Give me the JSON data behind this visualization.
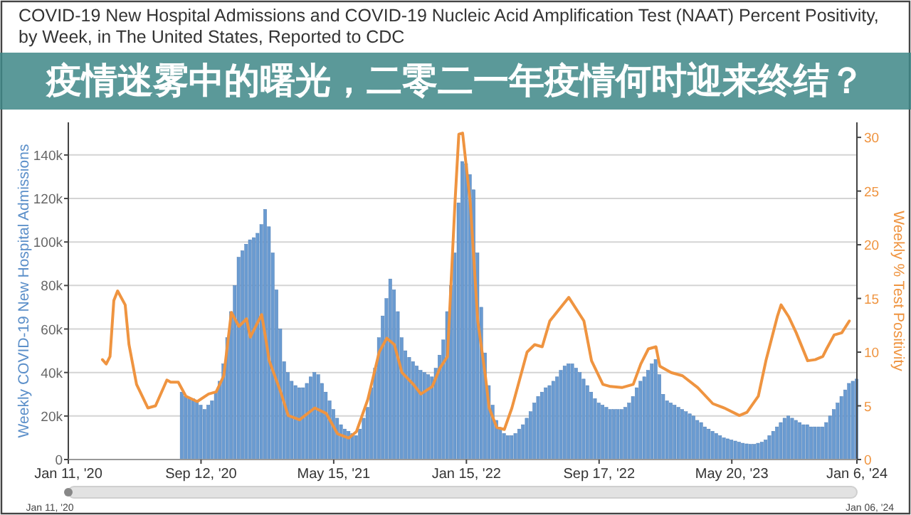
{
  "chart_data": {
    "type": "bar",
    "title": "COVID-19 New Hospital Admissions and COVID-19 Nucleic Acid Amplification Test (NAAT) Percent Positivity, by Week, in The United States, Reported to CDC",
    "ylabel": "Weekly COVID-19 New Hospital Admissions",
    "y2label": "Weekly % Test Positivity",
    "annotations": [
      "疫情迷雾中的曙光，二零二一年疫情何时迎来终结？",
      "Jan 11, '20",
      "Jan 06, '24"
    ],
    "xlim": [
      "2020-01-11",
      "2024-01-06"
    ],
    "xticks": [
      {
        "value": "2020-01-11",
        "label": "Jan 11, '20"
      },
      {
        "value": "2020-09-12",
        "label": "Sep 12, '20"
      },
      {
        "value": "2021-05-15",
        "label": "May 15, '21"
      },
      {
        "value": "2022-01-15",
        "label": "Jan 15, '22"
      },
      {
        "value": "2022-09-17",
        "label": "Sep 17, '22"
      },
      {
        "value": "2023-05-20",
        "label": "May 20, '23"
      },
      {
        "value": "2024-01-06",
        "label": "Jan 6, '24"
      }
    ],
    "ylim": [
      0,
      155000
    ],
    "yticks": [
      {
        "value": 0,
        "label": "0"
      },
      {
        "value": 20000,
        "label": "20k"
      },
      {
        "value": 40000,
        "label": "40k"
      },
      {
        "value": 60000,
        "label": "60k"
      },
      {
        "value": 80000,
        "label": "80k"
      },
      {
        "value": 100000,
        "label": "100k"
      },
      {
        "value": 120000,
        "label": "120k"
      },
      {
        "value": 140000,
        "label": "140k"
      }
    ],
    "y2lim": [
      0,
      31.4
    ],
    "y2ticks": [
      0,
      5,
      10,
      15,
      20,
      25,
      30
    ],
    "grid": "y",
    "series": [
      {
        "color": "#6a9bd1",
        "x": [
          "2020-08-08",
          "2020-08-15",
          "2020-08-22",
          "2020-08-29",
          "2020-09-05",
          "2020-09-12",
          "2020-09-19",
          "2020-09-26",
          "2020-10-03",
          "2020-10-10",
          "2020-10-17",
          "2020-10-24",
          "2020-10-31",
          "2020-11-07",
          "2020-11-14",
          "2020-11-21",
          "2020-11-28",
          "2020-12-05",
          "2020-12-12",
          "2020-12-19",
          "2020-12-26",
          "2021-01-02",
          "2021-01-09",
          "2021-01-16",
          "2021-01-23",
          "2021-01-30",
          "2021-02-06",
          "2021-02-13",
          "2021-02-20",
          "2021-02-27",
          "2021-03-06",
          "2021-03-13",
          "2021-03-20",
          "2021-03-27",
          "2021-04-03",
          "2021-04-10",
          "2021-04-17",
          "2021-04-24",
          "2021-05-01",
          "2021-05-08",
          "2021-05-15",
          "2021-05-22",
          "2021-05-29",
          "2021-06-05",
          "2021-06-12",
          "2021-06-19",
          "2021-06-26",
          "2021-07-03",
          "2021-07-10",
          "2021-07-17",
          "2021-07-24",
          "2021-07-31",
          "2021-08-07",
          "2021-08-14",
          "2021-08-21",
          "2021-08-28",
          "2021-09-04",
          "2021-09-11",
          "2021-09-18",
          "2021-09-25",
          "2021-10-02",
          "2021-10-09",
          "2021-10-16",
          "2021-10-23",
          "2021-10-30",
          "2021-11-06",
          "2021-11-13",
          "2021-11-20",
          "2021-11-27",
          "2021-12-04",
          "2021-12-11",
          "2021-12-18",
          "2021-12-25",
          "2022-01-01",
          "2022-01-08",
          "2022-01-15",
          "2022-01-22",
          "2022-01-29",
          "2022-02-05",
          "2022-02-12",
          "2022-02-19",
          "2022-02-26",
          "2022-03-05",
          "2022-03-12",
          "2022-03-19",
          "2022-03-26",
          "2022-04-02",
          "2022-04-09",
          "2022-04-16",
          "2022-04-23",
          "2022-04-30",
          "2022-05-07",
          "2022-05-14",
          "2022-05-21",
          "2022-05-28",
          "2022-06-04",
          "2022-06-11",
          "2022-06-18",
          "2022-06-25",
          "2022-07-02",
          "2022-07-09",
          "2022-07-16",
          "2022-07-23",
          "2022-07-30",
          "2022-08-06",
          "2022-08-13",
          "2022-08-20",
          "2022-08-27",
          "2022-09-03",
          "2022-09-10",
          "2022-09-17",
          "2022-09-24",
          "2022-10-01",
          "2022-10-08",
          "2022-10-15",
          "2022-10-22",
          "2022-10-29",
          "2022-11-05",
          "2022-11-12",
          "2022-11-19",
          "2022-11-26",
          "2022-12-03",
          "2022-12-10",
          "2022-12-17",
          "2022-12-24",
          "2022-12-31",
          "2023-01-07",
          "2023-01-14",
          "2023-01-21",
          "2023-01-28",
          "2023-02-04",
          "2023-02-11",
          "2023-02-18",
          "2023-02-25",
          "2023-03-04",
          "2023-03-11",
          "2023-03-18",
          "2023-03-25",
          "2023-04-01",
          "2023-04-08",
          "2023-04-15",
          "2023-04-22",
          "2023-04-29",
          "2023-05-06",
          "2023-05-13",
          "2023-05-20",
          "2023-05-27",
          "2023-06-03",
          "2023-06-10",
          "2023-06-17",
          "2023-06-24",
          "2023-07-01",
          "2023-07-08",
          "2023-07-15",
          "2023-07-22",
          "2023-07-29",
          "2023-08-05",
          "2023-08-12",
          "2023-08-19",
          "2023-08-26",
          "2023-09-02",
          "2023-09-09",
          "2023-09-16",
          "2023-09-23",
          "2023-09-30",
          "2023-10-07",
          "2023-10-14",
          "2023-10-21",
          "2023-10-28",
          "2023-11-04",
          "2023-11-11",
          "2023-11-18",
          "2023-11-25",
          "2023-12-02",
          "2023-12-09",
          "2023-12-16",
          "2023-12-23",
          "2023-12-30",
          "2024-01-06"
        ],
        "values": [
          31000,
          29000,
          28000,
          28000,
          27000,
          25000,
          23000,
          25000,
          27000,
          31000,
          36000,
          44000,
          56000,
          68000,
          80000,
          93000,
          96000,
          99000,
          101000,
          102000,
          104000,
          108000,
          115000,
          107000,
          95000,
          78000,
          60000,
          45000,
          40000,
          36000,
          34000,
          33000,
          33000,
          35000,
          38000,
          40000,
          39000,
          35000,
          31000,
          27000,
          23000,
          19000,
          16000,
          14000,
          13000,
          12000,
          11000,
          14000,
          19000,
          24000,
          33000,
          42000,
          56000,
          66000,
          74000,
          83000,
          78000,
          68000,
          56000,
          50000,
          47000,
          45000,
          43000,
          41000,
          40000,
          39000,
          38000,
          42000,
          48000,
          55000,
          68000,
          80000,
          95000,
          118000,
          137000,
          136000,
          131000,
          124000,
          95000,
          70000,
          49000,
          34000,
          25000,
          18000,
          14000,
          12000,
          11000,
          11000,
          12000,
          14000,
          16000,
          19000,
          22000,
          26000,
          29000,
          31000,
          33000,
          34000,
          36000,
          38000,
          41000,
          43000,
          44000,
          44000,
          42000,
          40000,
          37000,
          34000,
          31000,
          28000,
          26000,
          25000,
          24000,
          23000,
          23000,
          23000,
          23000,
          24000,
          26000,
          29000,
          33000,
          36000,
          38000,
          41000,
          44000,
          46000,
          39000,
          30000,
          27000,
          26000,
          25000,
          24000,
          23000,
          22000,
          21000,
          20000,
          18000,
          17000,
          15000,
          14000,
          13000,
          12000,
          11000,
          10000,
          9500,
          9000,
          8500,
          8000,
          7500,
          7200,
          7000,
          7000,
          7500,
          8000,
          9000,
          11000,
          13000,
          15000,
          17000,
          19000,
          20000,
          19000,
          18000,
          17000,
          16000,
          16000,
          15000,
          15000,
          15000,
          15000,
          17000,
          20000,
          23000,
          26000,
          29000,
          32000,
          35000,
          36000,
          37000
        ]
      },
      {
        "type": "line",
        "axis": "y2",
        "color": "#ef9440",
        "x": [
          "2020-03-14",
          "2020-03-21",
          "2020-03-28",
          "2020-04-04",
          "2020-04-11",
          "2020-04-25",
          "2020-05-02",
          "2020-05-16",
          "2020-06-06",
          "2020-06-20",
          "2020-07-11",
          "2020-07-18",
          "2020-08-01",
          "2020-08-15",
          "2020-09-05",
          "2020-09-26",
          "2020-10-10",
          "2020-10-24",
          "2020-11-07",
          "2020-11-21",
          "2020-12-05",
          "2020-12-12",
          "2021-01-02",
          "2021-01-09",
          "2021-01-16",
          "2021-02-06",
          "2021-02-20",
          "2021-03-13",
          "2021-04-10",
          "2021-05-01",
          "2021-05-22",
          "2021-06-12",
          "2021-06-26",
          "2021-07-17",
          "2021-08-07",
          "2021-08-21",
          "2021-09-04",
          "2021-09-18",
          "2021-10-09",
          "2021-10-23",
          "2021-11-13",
          "2021-11-27",
          "2021-12-11",
          "2021-12-25",
          "2022-01-01",
          "2022-01-08",
          "2022-01-22",
          "2022-02-05",
          "2022-02-19",
          "2022-02-26",
          "2022-03-12",
          "2022-03-26",
          "2022-04-09",
          "2022-05-07",
          "2022-05-21",
          "2022-06-04",
          "2022-06-18",
          "2022-07-23",
          "2022-08-20",
          "2022-09-03",
          "2022-09-24",
          "2022-10-08",
          "2022-10-29",
          "2022-11-19",
          "2022-12-03",
          "2022-12-17",
          "2022-12-31",
          "2023-01-07",
          "2023-01-28",
          "2023-02-18",
          "2023-03-18",
          "2023-04-15",
          "2023-05-06",
          "2023-06-03",
          "2023-06-17",
          "2023-07-08",
          "2023-07-22",
          "2023-08-12",
          "2023-08-19",
          "2023-09-02",
          "2023-09-16",
          "2023-10-07",
          "2023-10-21",
          "2023-11-04",
          "2023-11-11",
          "2023-11-25",
          "2023-12-09",
          "2023-12-23"
        ],
        "values": [
          9.3,
          8.9,
          9.6,
          14.8,
          15.7,
          14.4,
          10.7,
          7.0,
          4.8,
          5.0,
          7.4,
          7.2,
          7.2,
          5.9,
          5.4,
          6.1,
          6.3,
          7.8,
          13.7,
          12.4,
          13.1,
          11.4,
          13.5,
          11.4,
          9.2,
          6.3,
          4.1,
          3.7,
          4.8,
          4.3,
          2.4,
          2.0,
          2.6,
          5.6,
          10.0,
          11.3,
          10.7,
          8.1,
          7.0,
          6.1,
          6.8,
          8.5,
          9.6,
          24,
          30.3,
          30.4,
          24,
          12.9,
          7.8,
          4.8,
          3.0,
          2.8,
          4.8,
          10.0,
          10.7,
          10.5,
          12.9,
          15.1,
          12.9,
          9.2,
          7.0,
          6.8,
          6.7,
          7.0,
          8.9,
          10.3,
          10.5,
          8.7,
          8.1,
          7.8,
          6.7,
          5.2,
          4.8,
          4.1,
          4.4,
          5.9,
          9.2,
          13.3,
          14.4,
          13.3,
          11.8,
          9.2,
          9.3,
          9.6,
          10.3,
          11.6,
          11.8,
          12.9
        ]
      }
    ]
  }
}
